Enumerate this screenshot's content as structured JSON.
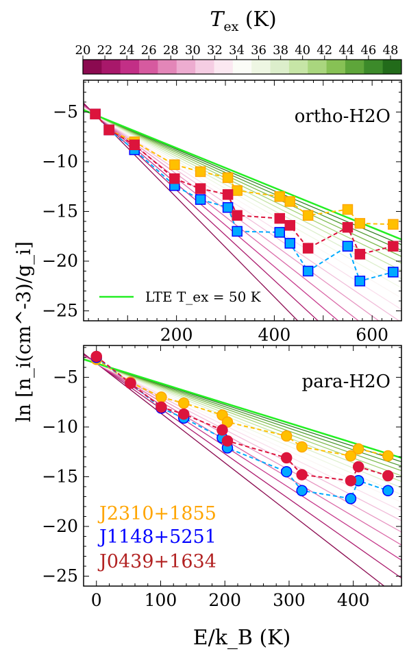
{
  "colorbar": {
    "label_main": "T",
    "label_sub": "ex",
    "label_unit": " (K)",
    "ticks": [
      "20",
      "22",
      "24",
      "26",
      "28",
      "30",
      "32",
      "34",
      "36",
      "38",
      "40",
      "42",
      "44",
      "46",
      "48"
    ],
    "range": [
      20,
      49
    ],
    "colors": [
      "#8b0a50",
      "#a8186a",
      "#c22f86",
      "#d65a9f",
      "#e386b8",
      "#edacd0",
      "#f5cde3",
      "#fbe8f1",
      "#fbfcf7",
      "#eef6e3",
      "#dceecb",
      "#c6e5a6",
      "#a9d67e",
      "#87c155",
      "#5ea53a",
      "#3c8a2a",
      "#226b1a"
    ]
  },
  "ylabel": "ln [n_i(cm^-3)/g_i]",
  "xlabel": "E/k_B (K)",
  "legend_lte": "LTE  T_ex = 50 K",
  "panel_text": {
    "ortho": "ortho-H2O",
    "para": "para-H2O"
  },
  "source_labels": [
    {
      "text": "J2310+1855",
      "color": "#ffa500"
    },
    {
      "text": "J1148+5251",
      "color": "#0000ff"
    },
    {
      "text": "J0439+1634",
      "color": "#b22222"
    }
  ],
  "chart_data": [
    {
      "type": "scatter",
      "panel": "ortho-H2O",
      "xlim": [
        10,
        660
      ],
      "ylim": [
        -26,
        -1.8
      ],
      "xticks": [
        200,
        400,
        600
      ],
      "yticks": [
        -5,
        -10,
        -15,
        -20,
        -25
      ],
      "model_lines": {
        "anchor": {
          "E": 34,
          "lnN": -5.3
        },
        "Tex": [
          20,
          22,
          24,
          26,
          28,
          30,
          32,
          34,
          36,
          38,
          40,
          42,
          44,
          46,
          48
        ],
        "lte_Tex": 50,
        "lte_color": "#22ee22"
      },
      "series": [
        {
          "name": "J2310+1855",
          "marker": "square",
          "fill": "#ffc000",
          "edge": "#ffa500",
          "line": "#ffc000",
          "x": [
            34,
            62,
            114,
            196,
            249,
            305,
            324,
            411,
            432,
            469,
            550,
            575,
            643
          ],
          "y": [
            -5.2,
            -6.8,
            -8.0,
            -10.3,
            -11.0,
            -11.6,
            -12.9,
            -13.5,
            -14.0,
            -15.4,
            -14.8,
            -16.2,
            -16.3
          ]
        },
        {
          "name": "J1148+5251",
          "marker": "square",
          "fill": "#00aaff",
          "edge": "#0000ff",
          "line": "#00aaff",
          "x": [
            34,
            62,
            114,
            196,
            249,
            305,
            324,
            411,
            432,
            469,
            550,
            575,
            643
          ],
          "y": [
            -5.2,
            -6.8,
            -8.8,
            -12.4,
            -13.8,
            -14.6,
            -17.0,
            -17.1,
            -18.2,
            -21.0,
            -18.5,
            -22.0,
            -21.1
          ]
        },
        {
          "name": "J0439+1634",
          "marker": "square",
          "fill": "#dc143c",
          "edge": "#dc143c",
          "line": "#dc143c",
          "x": [
            34,
            62,
            114,
            196,
            249,
            305,
            324,
            411,
            432,
            469,
            550,
            575,
            643
          ],
          "y": [
            -5.2,
            -6.8,
            -8.3,
            -11.7,
            -12.7,
            -13.3,
            -15.4,
            -15.7,
            -16.4,
            -18.7,
            -16.6,
            -19.3,
            -18.5
          ]
        }
      ]
    },
    {
      "type": "scatter",
      "panel": "para-H2O",
      "xlim": [
        -20,
        475
      ],
      "ylim": [
        -26,
        -1.8
      ],
      "xticks": [
        0,
        100,
        200,
        300,
        400
      ],
      "yticks": [
        -5,
        -10,
        -15,
        -20,
        -25
      ],
      "model_lines": {
        "anchor": {
          "E": 0,
          "lnN": -3.6
        },
        "Tex": [
          20,
          22,
          24,
          26,
          28,
          30,
          32,
          34,
          36,
          38,
          40,
          42,
          44,
          46,
          48
        ],
        "lte_Tex": 50,
        "lte_color": "#22ee22"
      },
      "series": [
        {
          "name": "J2310+1855",
          "marker": "circle",
          "fill": "#ffc000",
          "edge": "#ffa500",
          "line": "#ffc000",
          "x": [
            0,
            53,
            101,
            136,
            196,
            204,
            296,
            320,
            396,
            408,
            454
          ],
          "y": [
            -3.2,
            -5.5,
            -7.0,
            -7.6,
            -8.8,
            -9.5,
            -10.9,
            -12.0,
            -12.9,
            -12.2,
            -12.9
          ]
        },
        {
          "name": "J1148+5251",
          "marker": "circle",
          "fill": "#00aaff",
          "edge": "#0000ff",
          "line": "#00aaff",
          "x": [
            0,
            53,
            101,
            136,
            196,
            204,
            296,
            320,
            396,
            408,
            454
          ],
          "y": [
            -3.0,
            -5.6,
            -8.1,
            -9.1,
            -11.1,
            -12.1,
            -14.5,
            -16.4,
            -17.2,
            -15.4,
            -16.4
          ]
        },
        {
          "name": "J0439+1634",
          "marker": "circle",
          "fill": "#dc143c",
          "edge": "#dc143c",
          "line": "#dc143c",
          "x": [
            0,
            53,
            101,
            136,
            196,
            204,
            296,
            320,
            396,
            408,
            454
          ],
          "y": [
            -2.9,
            -5.6,
            -8.0,
            -8.7,
            -10.3,
            -11.4,
            -13.1,
            -14.8,
            -15.4,
            -14.0,
            -14.9
          ]
        }
      ]
    }
  ]
}
